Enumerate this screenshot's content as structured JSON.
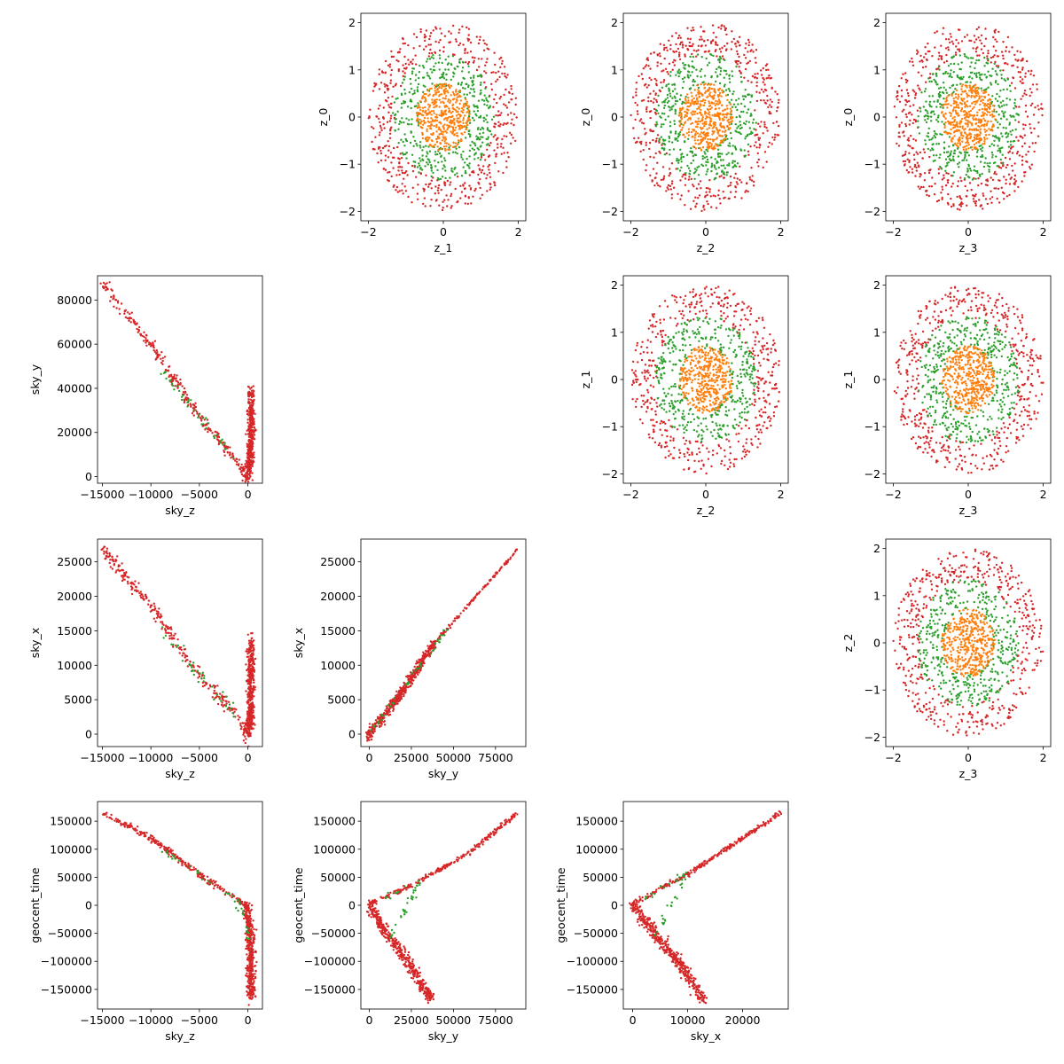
{
  "colors": {
    "orange": "#ff7f0e",
    "green": "#2ca02c",
    "red": "#d62728"
  },
  "chart_data": [
    {
      "id": "z1-z0",
      "type": "scatter",
      "row": 0,
      "col": 1,
      "cluster": "rings",
      "xlabel": "z_1",
      "ylabel": "z_0",
      "xlim": [
        -2.2,
        2.2
      ],
      "ylim": [
        -2.2,
        2.2
      ],
      "xticks": [
        -2,
        0,
        2
      ],
      "yticks": [
        -2,
        -1,
        0,
        1,
        2
      ],
      "series": [
        {
          "color": "#d62728",
          "shape": "annulus",
          "radius": [
            1.3,
            2.0
          ],
          "count": 500
        },
        {
          "color": "#2ca02c",
          "shape": "annulus",
          "radius": [
            0.65,
            1.35
          ],
          "count": 420
        },
        {
          "color": "#ff7f0e",
          "shape": "annulus",
          "radius": [
            0.0,
            0.72
          ],
          "count": 420
        }
      ]
    },
    {
      "id": "z2-z0",
      "type": "scatter",
      "row": 0,
      "col": 2,
      "cluster": "rings",
      "xlabel": "z_2",
      "ylabel": "z_0",
      "xlim": [
        -2.2,
        2.2
      ],
      "ylim": [
        -2.2,
        2.2
      ],
      "xticks": [
        -2,
        0,
        2
      ],
      "yticks": [
        -2,
        -1,
        0,
        1,
        2
      ],
      "series": [
        {
          "color": "#d62728",
          "shape": "annulus",
          "radius": [
            1.3,
            2.0
          ],
          "count": 500
        },
        {
          "color": "#2ca02c",
          "shape": "annulus",
          "radius": [
            0.65,
            1.35
          ],
          "count": 420
        },
        {
          "color": "#ff7f0e",
          "shape": "annulus",
          "radius": [
            0.0,
            0.72
          ],
          "count": 420
        }
      ]
    },
    {
      "id": "z3-z0",
      "type": "scatter",
      "row": 0,
      "col": 3,
      "cluster": "rings",
      "xlabel": "z_3",
      "ylabel": "z_0",
      "xlim": [
        -2.2,
        2.2
      ],
      "ylim": [
        -2.2,
        2.2
      ],
      "xticks": [
        -2,
        0,
        2
      ],
      "yticks": [
        -2,
        -1,
        0,
        1,
        2
      ],
      "series": [
        {
          "color": "#d62728",
          "shape": "annulus",
          "radius": [
            1.3,
            2.0
          ],
          "count": 500
        },
        {
          "color": "#2ca02c",
          "shape": "annulus",
          "radius": [
            0.65,
            1.35
          ],
          "count": 420
        },
        {
          "color": "#ff7f0e",
          "shape": "annulus",
          "radius": [
            0.0,
            0.72
          ],
          "count": 420
        }
      ]
    },
    {
      "id": "z2-z1",
      "type": "scatter",
      "row": 1,
      "col": 2,
      "cluster": "rings",
      "xlabel": "z_2",
      "ylabel": "z_1",
      "xlim": [
        -2.2,
        2.2
      ],
      "ylim": [
        -2.2,
        2.2
      ],
      "xticks": [
        -2,
        0,
        2
      ],
      "yticks": [
        -2,
        -1,
        0,
        1,
        2
      ],
      "series": [
        {
          "color": "#d62728",
          "shape": "annulus",
          "radius": [
            1.3,
            2.0
          ],
          "count": 500
        },
        {
          "color": "#2ca02c",
          "shape": "annulus",
          "radius": [
            0.65,
            1.35
          ],
          "count": 420
        },
        {
          "color": "#ff7f0e",
          "shape": "annulus",
          "radius": [
            0.0,
            0.72
          ],
          "count": 420
        }
      ]
    },
    {
      "id": "z3-z1",
      "type": "scatter",
      "row": 1,
      "col": 3,
      "cluster": "rings",
      "xlabel": "z_3",
      "ylabel": "z_1",
      "xlim": [
        -2.2,
        2.2
      ],
      "ylim": [
        -2.2,
        2.2
      ],
      "xticks": [
        -2,
        0,
        2
      ],
      "yticks": [
        -2,
        -1,
        0,
        1,
        2
      ],
      "series": [
        {
          "color": "#d62728",
          "shape": "annulus",
          "radius": [
            1.3,
            2.0
          ],
          "count": 500
        },
        {
          "color": "#2ca02c",
          "shape": "annulus",
          "radius": [
            0.65,
            1.35
          ],
          "count": 420
        },
        {
          "color": "#ff7f0e",
          "shape": "annulus",
          "radius": [
            0.0,
            0.72
          ],
          "count": 420
        }
      ]
    },
    {
      "id": "z3-z2",
      "type": "scatter",
      "row": 2,
      "col": 3,
      "cluster": "rings",
      "xlabel": "z_3",
      "ylabel": "z_2",
      "xlim": [
        -2.2,
        2.2
      ],
      "ylim": [
        -2.2,
        2.2
      ],
      "xticks": [
        -2,
        0,
        2
      ],
      "yticks": [
        -2,
        -1,
        0,
        1,
        2
      ],
      "series": [
        {
          "color": "#d62728",
          "shape": "annulus",
          "radius": [
            1.3,
            2.0
          ],
          "count": 500
        },
        {
          "color": "#2ca02c",
          "shape": "annulus",
          "radius": [
            0.65,
            1.35
          ],
          "count": 420
        },
        {
          "color": "#ff7f0e",
          "shape": "annulus",
          "radius": [
            0.0,
            0.72
          ],
          "count": 420
        }
      ]
    },
    {
      "id": "skyz-skyy",
      "type": "scatter",
      "row": 1,
      "col": 0,
      "cluster": "curves",
      "xlabel": "sky_z",
      "ylabel": "sky_y",
      "xlim": [
        -15500,
        1500
      ],
      "ylim": [
        -3000,
        91000
      ],
      "xticks": [
        -15000,
        -10000,
        -5000,
        0
      ],
      "yticks": [
        0,
        20000,
        40000,
        60000,
        80000
      ],
      "series": [
        {
          "color": "#d62728",
          "shape": "polyline",
          "path": [
            [
              -15000,
              87000
            ],
            [
              -10000,
              60000
            ],
            [
              -5000,
              27000
            ],
            [
              -1500,
              9000
            ],
            [
              -300,
              2000
            ]
          ],
          "spread": [
            150,
            1200
          ],
          "count": 280
        },
        {
          "color": "#d62728",
          "shape": "polyline",
          "path": [
            [
              -300,
              0
            ],
            [
              200,
              3000
            ],
            [
              300,
              18000
            ],
            [
              350,
              38000
            ]
          ],
          "spread": [
            180,
            2500
          ],
          "count": 450
        },
        {
          "color": "#2ca02c",
          "shape": "polyline",
          "path": [
            [
              -9000,
              48000
            ],
            [
              -5000,
              27000
            ],
            [
              -1500,
              9000
            ]
          ],
          "spread": [
            150,
            1200
          ],
          "count": 40
        }
      ]
    },
    {
      "id": "skyz-skyx",
      "type": "scatter",
      "row": 2,
      "col": 0,
      "cluster": "curves",
      "xlabel": "sky_z",
      "ylabel": "sky_x",
      "xlim": [
        -15500,
        1500
      ],
      "ylim": [
        -1800,
        28300
      ],
      "xticks": [
        -15000,
        -10000,
        -5000,
        0
      ],
      "yticks": [
        0,
        5000,
        10000,
        15000,
        20000,
        25000
      ],
      "series": [
        {
          "color": "#d62728",
          "shape": "polyline",
          "path": [
            [
              -15000,
              26800
            ],
            [
              -10000,
              18500
            ],
            [
              -5000,
              8500
            ],
            [
              -1500,
              3200
            ],
            [
              -300,
              700
            ]
          ],
          "spread": [
            150,
            500
          ],
          "count": 280
        },
        {
          "color": "#d62728",
          "shape": "polyline",
          "path": [
            [
              -300,
              0
            ],
            [
              200,
              1000
            ],
            [
              300,
              6000
            ],
            [
              350,
              13000
            ]
          ],
          "spread": [
            180,
            900
          ],
          "count": 450
        },
        {
          "color": "#2ca02c",
          "shape": "polyline",
          "path": [
            [
              -9000,
              15500
            ],
            [
              -5000,
              8500
            ],
            [
              -1500,
              3200
            ]
          ],
          "spread": [
            150,
            500
          ],
          "count": 40
        }
      ]
    },
    {
      "id": "skyy-skyx",
      "type": "scatter",
      "row": 2,
      "col": 1,
      "cluster": "curves",
      "xlabel": "sky_y",
      "ylabel": "sky_x",
      "xlim": [
        -5000,
        93000
      ],
      "ylim": [
        -1800,
        28300
      ],
      "xticks": [
        0,
        25000,
        50000,
        75000
      ],
      "yticks": [
        0,
        5000,
        10000,
        15000,
        20000,
        25000
      ],
      "series": [
        {
          "color": "#d62728",
          "shape": "polyline",
          "path": [
            [
              -1000,
              -300
            ],
            [
              20000,
              6200
            ],
            [
              38000,
              13000
            ]
          ],
          "spread": [
            700,
            400
          ],
          "count": 500
        },
        {
          "color": "#d62728",
          "shape": "polyline",
          "path": [
            [
              38000,
              13000
            ],
            [
              88000,
              26800
            ]
          ],
          "spread": [
            300,
            120
          ],
          "count": 120
        },
        {
          "color": "#2ca02c",
          "shape": "polyline",
          "path": [
            [
              1000,
              300
            ],
            [
              30000,
              9800
            ],
            [
              48000,
              15800
            ]
          ],
          "spread": [
            400,
            250
          ],
          "count": 40
        }
      ]
    },
    {
      "id": "skyz-geocent",
      "type": "scatter",
      "row": 3,
      "col": 0,
      "cluster": "curves",
      "xlabel": "sky_z",
      "ylabel": "geocent_time",
      "xlim": [
        -15500,
        1500
      ],
      "ylim": [
        -185000,
        185000
      ],
      "xticks": [
        -15000,
        -10000,
        -5000,
        0
      ],
      "yticks": [
        -150000,
        -100000,
        -50000,
        0,
        50000,
        100000,
        150000
      ],
      "series": [
        {
          "color": "#d62728",
          "shape": "polyline",
          "path": [
            [
              -15000,
              165000
            ],
            [
              -10000,
              120000
            ],
            [
              -5000,
              55000
            ],
            [
              -1500,
              15000
            ],
            [
              -200,
              0
            ]
          ],
          "spread": [
            150,
            2500
          ],
          "count": 280
        },
        {
          "color": "#d62728",
          "shape": "polyline",
          "path": [
            [
              -200,
              0
            ],
            [
              200,
              -40000
            ],
            [
              300,
              -100000
            ],
            [
              350,
              -165000
            ]
          ],
          "spread": [
            200,
            6000
          ],
          "count": 450
        },
        {
          "color": "#2ca02c",
          "shape": "polyline",
          "path": [
            [
              -9000,
              100000
            ],
            [
              -5000,
              55000
            ],
            [
              -1000,
              10000
            ],
            [
              200,
              -60000
            ]
          ],
          "spread": [
            150,
            3000
          ],
          "count": 40
        }
      ]
    },
    {
      "id": "skyy-geocent",
      "type": "scatter",
      "row": 3,
      "col": 1,
      "cluster": "curves",
      "xlabel": "sky_y",
      "ylabel": "geocent_time",
      "xlim": [
        -5000,
        93000
      ],
      "ylim": [
        -185000,
        185000
      ],
      "xticks": [
        0,
        25000,
        50000,
        75000
      ],
      "yticks": [
        -150000,
        -100000,
        -50000,
        0,
        50000,
        100000,
        150000
      ],
      "series": [
        {
          "color": "#d62728",
          "shape": "polyline",
          "path": [
            [
              -1000,
              0
            ],
            [
              25000,
              35000
            ],
            [
              60000,
              95000
            ],
            [
              88000,
              165000
            ]
          ],
          "spread": [
            600,
            2000
          ],
          "count": 260
        },
        {
          "color": "#d62728",
          "shape": "polyline",
          "path": [
            [
              0,
              0
            ],
            [
              10000,
              -50000
            ],
            [
              25000,
              -110000
            ],
            [
              37000,
              -170000
            ]
          ],
          "spread": [
            1200,
            5000
          ],
          "count": 420
        },
        {
          "color": "#2ca02c",
          "shape": "polyline",
          "path": [
            [
              5000,
              10000
            ],
            [
              30000,
              40000
            ],
            [
              12000,
              -60000
            ]
          ],
          "spread": [
            800,
            3000
          ],
          "count": 40
        }
      ]
    },
    {
      "id": "skyx-geocent",
      "type": "scatter",
      "row": 3,
      "col": 2,
      "cluster": "curves",
      "xlabel": "sky_x",
      "ylabel": "geocent_time",
      "xlim": [
        -1700,
        28300
      ],
      "ylim": [
        -185000,
        185000
      ],
      "xticks": [
        0,
        10000,
        20000
      ],
      "yticks": [
        -150000,
        -100000,
        -50000,
        0,
        50000,
        100000,
        150000
      ],
      "series": [
        {
          "color": "#d62728",
          "shape": "polyline",
          "path": [
            [
              -500,
              0
            ],
            [
              10000,
              55000
            ],
            [
              20000,
              120000
            ],
            [
              27000,
              165000
            ]
          ],
          "spread": [
            200,
            2000
          ],
          "count": 260
        },
        {
          "color": "#d62728",
          "shape": "polyline",
          "path": [
            [
              0,
              0
            ],
            [
              4000,
              -50000
            ],
            [
              9000,
              -110000
            ],
            [
              13000,
              -170000
            ]
          ],
          "spread": [
            400,
            5000
          ],
          "count": 420
        },
        {
          "color": "#2ca02c",
          "shape": "polyline",
          "path": [
            [
              2000,
              10000
            ],
            [
              10000,
              60000
            ],
            [
              4000,
              -60000
            ]
          ],
          "spread": [
            250,
            3000
          ],
          "count": 40
        }
      ]
    }
  ]
}
